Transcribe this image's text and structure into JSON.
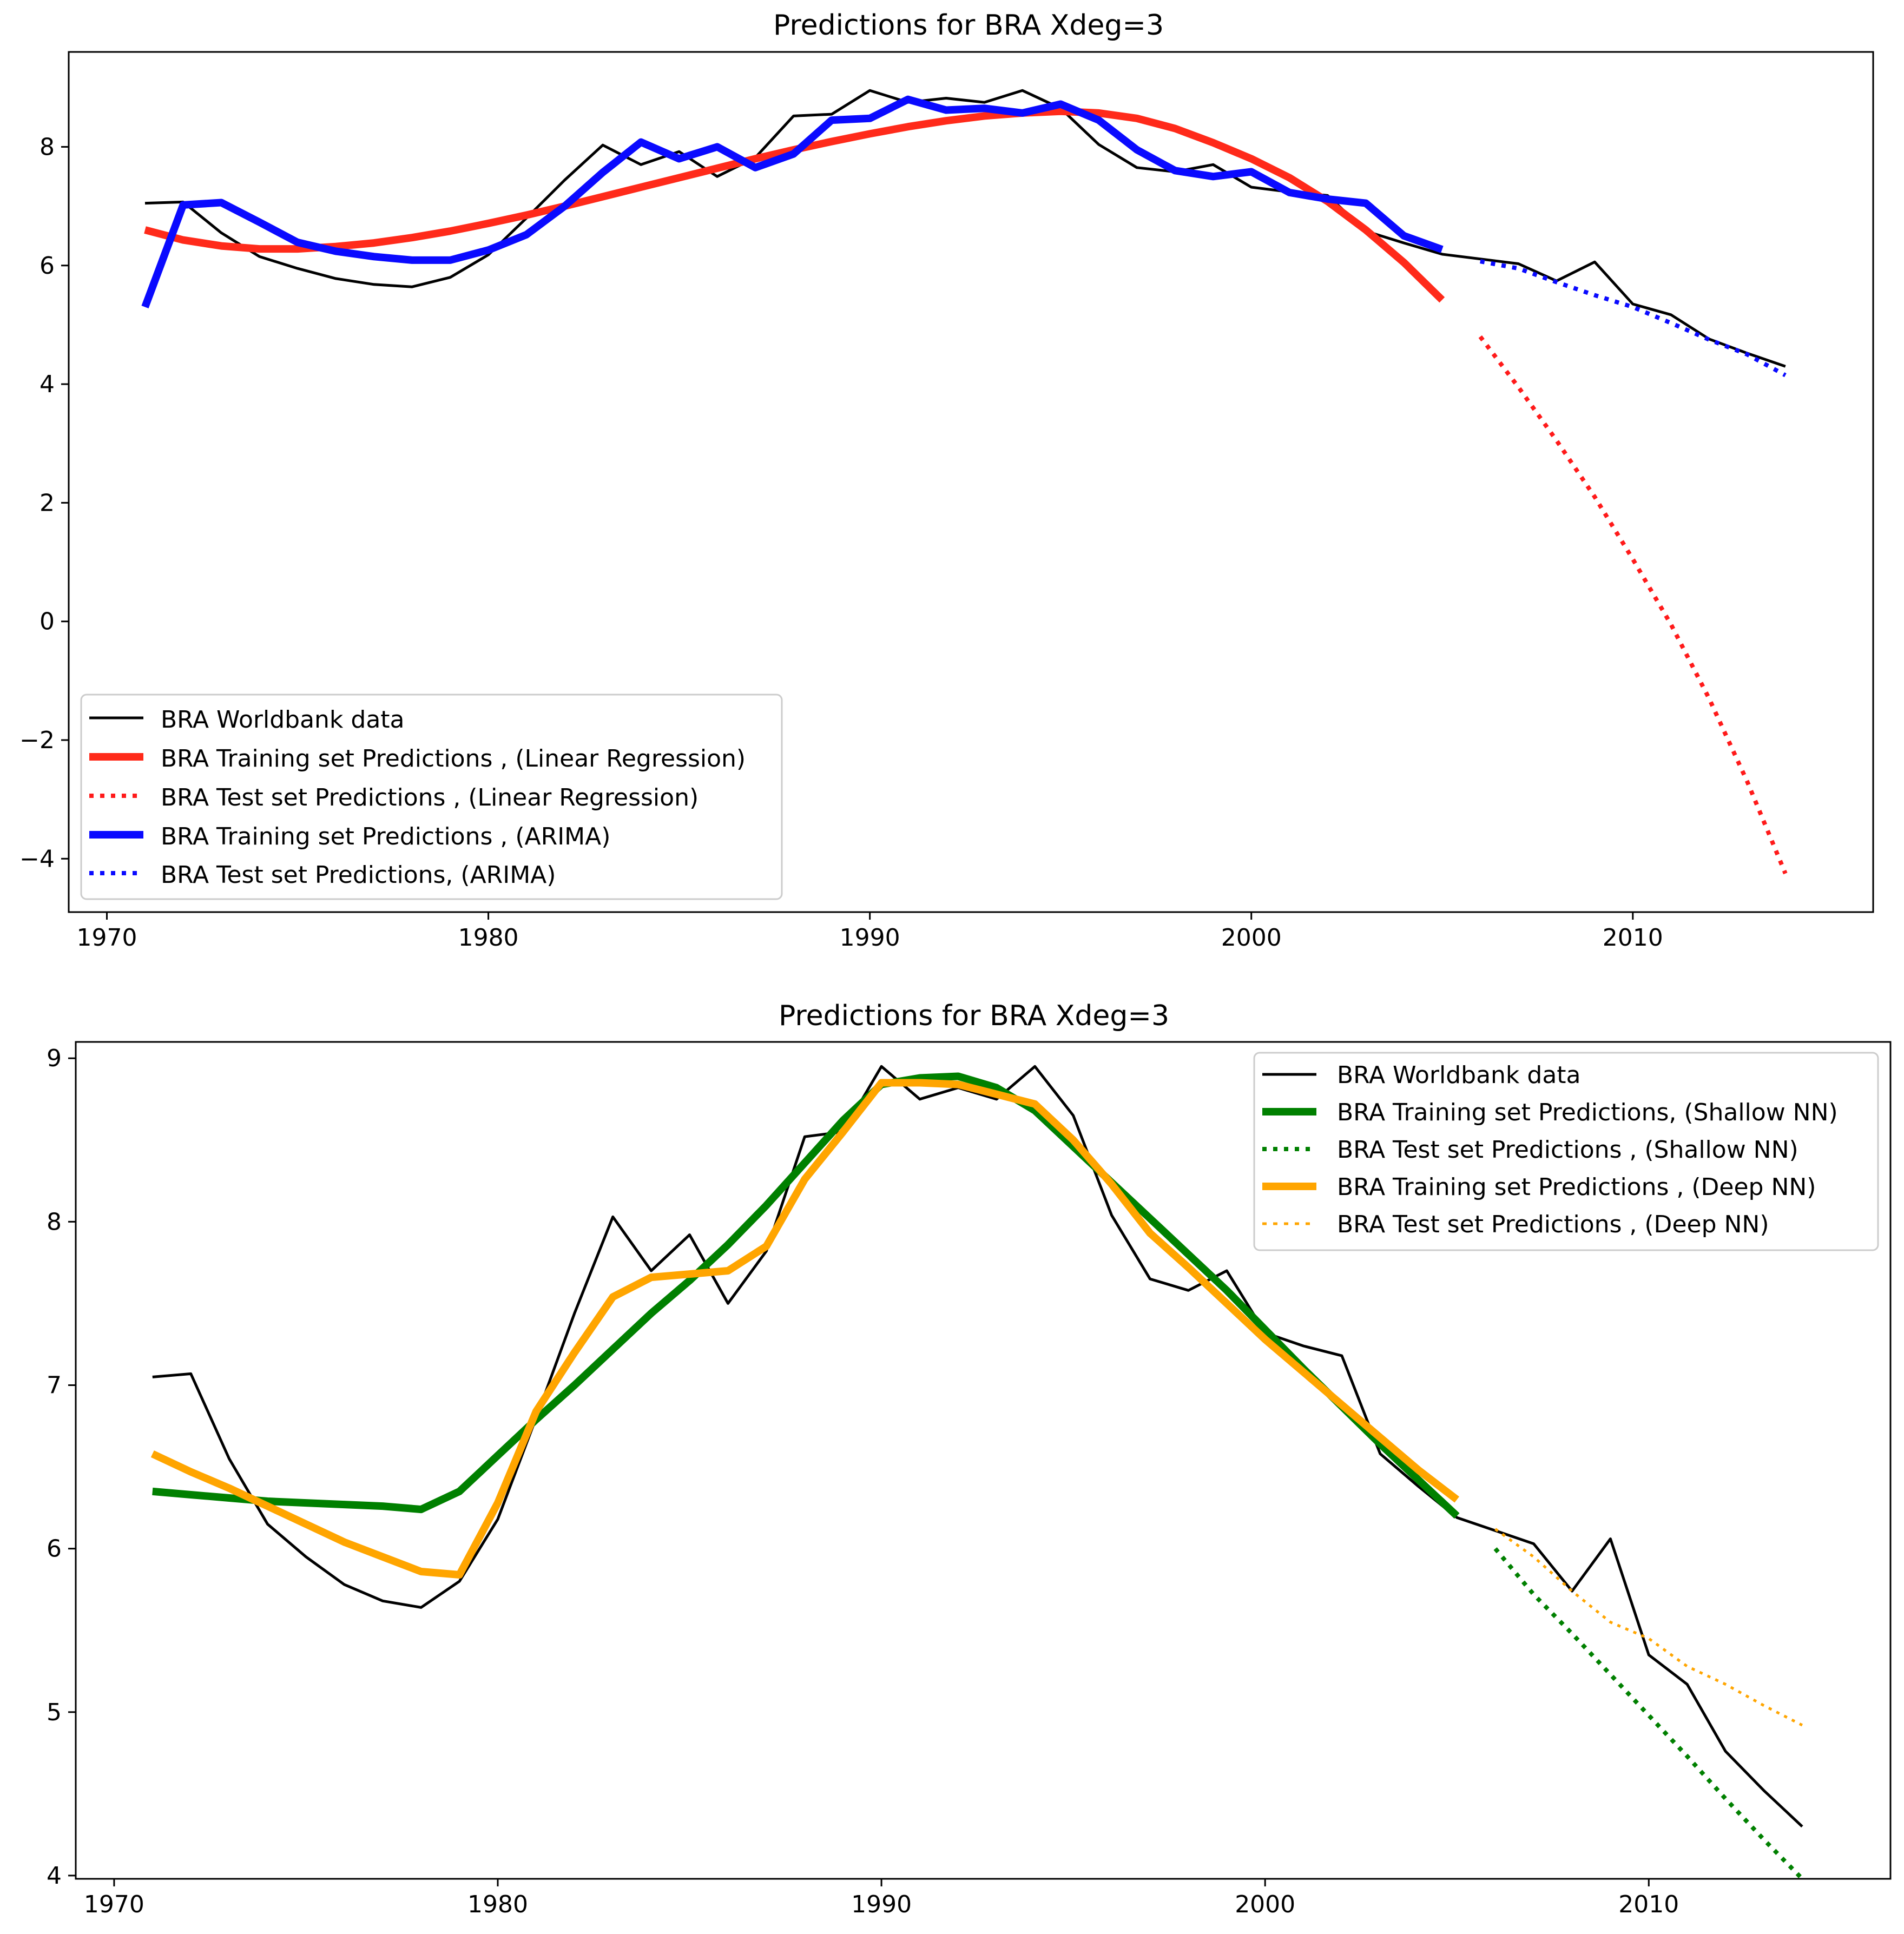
{
  "chart_data": [
    {
      "type": "line",
      "title": "Predictions for BRA  Xdeg=3",
      "xlabel": "",
      "ylabel": "",
      "xlim": [
        1969.0,
        2016.3
      ],
      "ylim": [
        -4.9,
        9.6
      ],
      "xticks": [
        1970,
        1980,
        1990,
        2000,
        2010
      ],
      "yticks": [
        -4,
        -2,
        0,
        2,
        4,
        6,
        8
      ],
      "legend_position": "lower-left",
      "series": [
        {
          "name": "BRA Worldbank data",
          "style": "solid",
          "color": "#000000",
          "width": 5,
          "x": [
            1971,
            1972,
            1973,
            1974,
            1975,
            1976,
            1977,
            1978,
            1979,
            1980,
            1981,
            1982,
            1983,
            1984,
            1985,
            1986,
            1987,
            1988,
            1989,
            1990,
            1991,
            1992,
            1993,
            1994,
            1995,
            1996,
            1997,
            1998,
            1999,
            2000,
            2001,
            2002,
            2003,
            2004,
            2005,
            2006,
            2007,
            2008,
            2009,
            2010,
            2011,
            2012,
            2013,
            2014
          ],
          "y": [
            7.05,
            7.07,
            6.55,
            6.15,
            5.95,
            5.78,
            5.68,
            5.64,
            5.8,
            6.18,
            6.8,
            7.44,
            8.03,
            7.7,
            7.92,
            7.5,
            7.82,
            8.52,
            8.55,
            8.95,
            8.75,
            8.82,
            8.75,
            8.95,
            8.65,
            8.04,
            7.65,
            7.58,
            7.7,
            7.32,
            7.24,
            7.18,
            6.58,
            6.38,
            6.19,
            6.11,
            6.03,
            5.74,
            6.06,
            5.35,
            5.17,
            4.76,
            4.52,
            4.3
          ]
        },
        {
          "name": "BRA Training set Predictions , (Linear Regression)",
          "style": "solid",
          "color": "#ff2a1a",
          "width": 14,
          "x": [
            1971,
            1972,
            1973,
            1974,
            1975,
            1976,
            1977,
            1978,
            1979,
            1980,
            1981,
            1982,
            1983,
            1984,
            1985,
            1986,
            1987,
            1988,
            1989,
            1990,
            1991,
            1992,
            1993,
            1994,
            1995,
            1996,
            1997,
            1998,
            1999,
            2000,
            2001,
            2002,
            2003,
            2004,
            2005
          ],
          "y": [
            6.6,
            6.43,
            6.33,
            6.28,
            6.28,
            6.32,
            6.38,
            6.47,
            6.58,
            6.71,
            6.85,
            7.0,
            7.16,
            7.32,
            7.48,
            7.64,
            7.8,
            7.95,
            8.09,
            8.22,
            8.34,
            8.44,
            8.52,
            8.57,
            8.6,
            8.57,
            8.48,
            8.31,
            8.07,
            7.8,
            7.48,
            7.08,
            6.6,
            6.05,
            5.42
          ]
        },
        {
          "name": "BRA Test set Predictions , (Linear Regression)",
          "style": "dotted",
          "color": "#ff1a1a",
          "width": 8,
          "x": [
            2006,
            2007,
            2008,
            2009,
            2010,
            2011,
            2012,
            2013,
            2014
          ],
          "y": [
            4.8,
            3.95,
            3.05,
            2.1,
            1.05,
            -0.05,
            -1.3,
            -2.7,
            -4.25
          ]
        },
        {
          "name": "BRA Training set Predictions , (ARIMA)",
          "style": "solid",
          "color": "#0a0aff",
          "width": 14,
          "x": [
            1971,
            1972,
            1973,
            1974,
            1975,
            1976,
            1977,
            1978,
            1979,
            1980,
            1981,
            1982,
            1983,
            1984,
            1985,
            1986,
            1987,
            1988,
            1989,
            1990,
            1991,
            1992,
            1993,
            1994,
            1995,
            1996,
            1997,
            1998,
            1999,
            2000,
            2001,
            2002,
            2003,
            2004,
            2005
          ],
          "y": [
            5.3,
            7.02,
            7.06,
            6.73,
            6.39,
            6.24,
            6.15,
            6.09,
            6.09,
            6.26,
            6.52,
            7.0,
            7.57,
            8.08,
            7.8,
            8.0,
            7.65,
            7.88,
            8.45,
            8.48,
            8.8,
            8.62,
            8.65,
            8.57,
            8.72,
            8.45,
            7.95,
            7.6,
            7.5,
            7.58,
            7.23,
            7.12,
            7.05,
            6.5,
            6.27
          ]
        },
        {
          "name": "BRA Test set Predictions, (ARIMA)",
          "style": "dotted",
          "color": "#0a0aff",
          "width": 8,
          "x": [
            2006,
            2007,
            2008,
            2009,
            2010,
            2011,
            2012,
            2013,
            2014
          ],
          "y": [
            6.07,
            5.95,
            5.72,
            5.5,
            5.3,
            5.03,
            4.75,
            4.5,
            4.15
          ]
        }
      ]
    },
    {
      "type": "line",
      "title": "Predictions for BRA  Xdeg=3",
      "xlabel": "",
      "ylabel": "",
      "xlim": [
        1969.0,
        2016.3
      ],
      "ylim": [
        3.98,
        9.1
      ],
      "xticks": [
        1970,
        1980,
        1990,
        2000,
        2010
      ],
      "yticks": [
        4,
        5,
        6,
        7,
        8,
        9
      ],
      "legend_position": "top-right",
      "series": [
        {
          "name": "BRA Worldbank data",
          "style": "solid",
          "color": "#000000",
          "width": 5,
          "x": [
            1971,
            1972,
            1973,
            1974,
            1975,
            1976,
            1977,
            1978,
            1979,
            1980,
            1981,
            1982,
            1983,
            1984,
            1985,
            1986,
            1987,
            1988,
            1989,
            1990,
            1991,
            1992,
            1993,
            1994,
            1995,
            1996,
            1997,
            1998,
            1999,
            2000,
            2001,
            2002,
            2003,
            2004,
            2005,
            2006,
            2007,
            2008,
            2009,
            2010,
            2011,
            2012,
            2013,
            2014
          ],
          "y": [
            7.05,
            7.07,
            6.55,
            6.15,
            5.95,
            5.78,
            5.68,
            5.64,
            5.8,
            6.18,
            6.8,
            7.44,
            8.03,
            7.7,
            7.92,
            7.5,
            7.82,
            8.52,
            8.55,
            8.95,
            8.75,
            8.82,
            8.75,
            8.95,
            8.65,
            8.04,
            7.65,
            7.58,
            7.7,
            7.32,
            7.24,
            7.18,
            6.58,
            6.38,
            6.19,
            6.11,
            6.03,
            5.74,
            6.06,
            5.35,
            5.17,
            4.76,
            4.52,
            4.3
          ]
        },
        {
          "name": "BRA Training set Predictions, (Shallow NN)",
          "style": "solid",
          "color": "#008000",
          "width": 14,
          "x": [
            1971,
            1972,
            1973,
            1974,
            1975,
            1976,
            1977,
            1978,
            1979,
            1980,
            1981,
            1982,
            1983,
            1984,
            1985,
            1986,
            1987,
            1988,
            1989,
            1990,
            1991,
            1992,
            1993,
            1994,
            1995,
            1996,
            1997,
            1998,
            1999,
            2000,
            2001,
            2002,
            2003,
            2004,
            2005
          ],
          "y": [
            6.35,
            6.33,
            6.31,
            6.29,
            6.28,
            6.27,
            6.26,
            6.24,
            6.35,
            6.57,
            6.79,
            7.0,
            7.22,
            7.44,
            7.64,
            7.86,
            8.1,
            8.36,
            8.62,
            8.84,
            8.88,
            8.89,
            8.82,
            8.68,
            8.46,
            8.24,
            8.02,
            7.8,
            7.58,
            7.34,
            7.1,
            6.87,
            6.64,
            6.42,
            6.2
          ]
        },
        {
          "name": "BRA Test set Predictions , (Shallow NN)",
          "style": "dotted",
          "color": "#008000",
          "width": 8,
          "x": [
            2006,
            2007,
            2008,
            2009,
            2010,
            2011,
            2012,
            2013,
            2014
          ],
          "y": [
            6.0,
            5.72,
            5.48,
            5.23,
            4.98,
            4.73,
            4.47,
            4.22,
            3.98
          ]
        },
        {
          "name": "BRA Training set Predictions , (Deep NN)",
          "style": "solid",
          "color": "#ffa500",
          "width": 14,
          "x": [
            1971,
            1972,
            1973,
            1974,
            1975,
            1976,
            1977,
            1978,
            1979,
            1980,
            1981,
            1982,
            1983,
            1984,
            1985,
            1986,
            1987,
            1988,
            1989,
            1990,
            1991,
            1992,
            1993,
            1994,
            1995,
            1996,
            1997,
            1998,
            1999,
            2000,
            2001,
            2002,
            2003,
            2004,
            2005
          ],
          "y": [
            6.58,
            6.47,
            6.37,
            6.26,
            6.15,
            6.04,
            5.95,
            5.86,
            5.84,
            6.28,
            6.84,
            7.2,
            7.54,
            7.66,
            7.68,
            7.7,
            7.85,
            8.26,
            8.55,
            8.85,
            8.85,
            8.84,
            8.78,
            8.72,
            8.5,
            8.23,
            7.93,
            7.72,
            7.5,
            7.28,
            7.08,
            6.88,
            6.68,
            6.48,
            6.3
          ]
        },
        {
          "name": "BRA Test set Predictions , (Deep NN)",
          "style": "dotted",
          "color": "#ffa500",
          "width": 5,
          "x": [
            2006,
            2007,
            2008,
            2009,
            2010,
            2011,
            2012,
            2013,
            2014
          ],
          "y": [
            6.12,
            5.95,
            5.74,
            5.55,
            5.45,
            5.28,
            5.17,
            5.04,
            4.92
          ]
        }
      ]
    }
  ]
}
